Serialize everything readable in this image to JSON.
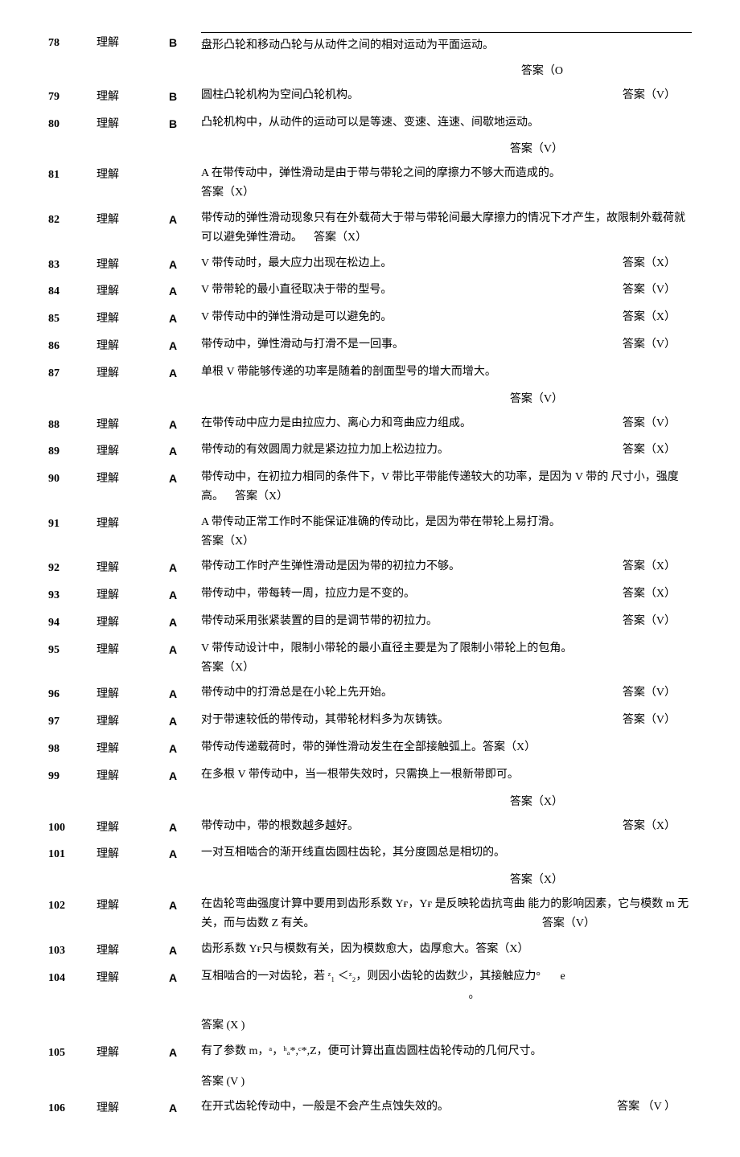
{
  "rows": [
    {
      "n": "78",
      "lvl": "理解",
      "g": "B",
      "q": "盘形凸轮和移动凸轮与从动件之间的相对运动为平面运动。",
      "a": "答案（O",
      "layout": "below-right",
      "topline": true
    },
    {
      "n": "79",
      "lvl": "理解",
      "g": "B",
      "q": "圆柱凸轮机构为空间凸轮机构。",
      "a": "答案（V）",
      "layout": "inline-right"
    },
    {
      "n": "80",
      "lvl": "理解",
      "g": "B",
      "q": "凸轮机构中，从动件的运动可以是等速、变速、连速、间歇地运动。",
      "a": "答案（V）",
      "layout": "below-right"
    },
    {
      "n": "81",
      "lvl": "理解",
      "g": "A",
      "q": "在带传动中，弹性滑动是由于带与带轮之间的摩擦力不够大而造成的。",
      "a": "答案（X）",
      "layout": "next-line",
      "merged": true
    },
    {
      "n": "82",
      "lvl": "理解",
      "g": "A",
      "q": "带传动的弹性滑动现象只有在外载荷大于带与带轮间最大摩擦力的情况下才产生，故限制外载荷就可以避免弹性滑动。",
      "a": "答案（X）",
      "layout": "inline-after"
    },
    {
      "n": "83",
      "lvl": "理解",
      "g": "A",
      "q": "V 带传动时，最大应力出现在松边上。",
      "a": "答案（X）",
      "layout": "inline-right"
    },
    {
      "n": "84",
      "lvl": "理解",
      "g": "A",
      "q": "V 带带轮的最小直径取决于带的型号。",
      "a": "答案（V）",
      "layout": "inline-right"
    },
    {
      "n": "85",
      "lvl": "理解",
      "g": "A",
      "q": "V 带传动中的弹性滑动是可以避免的。",
      "a": "答案（X）",
      "layout": "inline-right"
    },
    {
      "n": "86",
      "lvl": "理解",
      "g": "A",
      "q": "带传动中，弹性滑动与打滑不是一回事。",
      "a": "答案（V）",
      "layout": "inline-right"
    },
    {
      "n": "87",
      "lvl": "理解",
      "g": "A",
      "q": "单根 V 带能够传递的功率是随着的剖面型号的增大而增大。",
      "a": "答案（V）",
      "layout": "below-right"
    },
    {
      "n": "88",
      "lvl": "理解",
      "g": "A",
      "q": "在带传动中应力是由拉应力、离心力和弯曲应力组成。",
      "a": "答案（V）",
      "layout": "inline-right"
    },
    {
      "n": "89",
      "lvl": "理解",
      "g": "A",
      "q": "带传动的有效圆周力就是紧边拉力加上松边拉力。",
      "a": "答案（X）",
      "layout": "inline-right"
    },
    {
      "n": "90",
      "lvl": "理解",
      "g": "A",
      "q": "带传动中，在初拉力相同的条件下，V 带比平带能传递较大的功率，是因为 V 带的 尺寸小，强度高。",
      "a": "答案（X）",
      "layout": "inline-after"
    },
    {
      "n": "91",
      "lvl": "理解",
      "g": "A",
      "q": "带传动正常工作时不能保证准确的传动比，是因为带在带轮上易打滑。",
      "a": "答案（X）",
      "layout": "next-line",
      "merged": true
    },
    {
      "n": "92",
      "lvl": "理解",
      "g": "A",
      "q": "带传动工作时产生弹性滑动是因为带的初拉力不够。",
      "a": "答案（X）",
      "layout": "inline-right"
    },
    {
      "n": "93",
      "lvl": "理解",
      "g": "A",
      "q": "带传动中，带每转一周，拉应力是不变的。",
      "a": "答案（X）",
      "layout": "inline-right"
    },
    {
      "n": "94",
      "lvl": "理解",
      "g": "A",
      "q": "带传动采用张紧装置的目的是调节带的初拉力。",
      "a": "答案（V）",
      "layout": "inline-right"
    },
    {
      "n": "95",
      "lvl": "理解",
      "g": "A",
      "q": "V 带传动设计中，限制小带轮的最小直径主要是为了限制小带轮上的包角。",
      "a": "答案（X）",
      "layout": "next-line"
    },
    {
      "n": "96",
      "lvl": "理解",
      "g": "A",
      "q": "带传动中的打滑总是在小轮上先开始。",
      "a": "答案（V）",
      "layout": "inline-right"
    },
    {
      "n": "97",
      "lvl": "理解",
      "g": "A",
      "q": "对于带速较低的带传动，其带轮材料多为灰铸铁。",
      "a": "答案（V）",
      "layout": "inline-right"
    },
    {
      "n": "98",
      "lvl": "理解",
      "g": "A",
      "q": "带传动传递载荷时，带的弹性滑动发生在全部接触弧上。",
      "a": "答案（X）",
      "layout": "inline-tight"
    },
    {
      "n": "99",
      "lvl": "理解",
      "g": "A",
      "q": "在多根 V 带传动中，当一根带失效时，只需换上一根新带即可。",
      "a": "答案（X）",
      "layout": "below-right"
    },
    {
      "n": "100",
      "lvl": "理解",
      "g": "A",
      "q": "带传动中，带的根数越多越好。",
      "a": "答案（X）",
      "layout": "inline-right"
    },
    {
      "n": "101",
      "lvl": "理解",
      "g": "A",
      "q": "一对互相啮合的渐开线直齿圆柱齿轮，其分度圆总是相切的。",
      "a": "答案（X）",
      "layout": "below-right"
    },
    {
      "n": "102",
      "lvl": "理解",
      "g": "A",
      "q": "在齿轮弯曲强度计算中要用到齿形系数 Yғ，Yғ 是反映轮齿抗弯曲 能力的影响因素，它与模数 m 无关，而与齿数 Z 有关。",
      "a": "答案（V）",
      "layout": "inline-right-end"
    },
    {
      "n": "103",
      "lvl": "理解",
      "g": "A",
      "q": "齿形系数 Yғ只与模数有关，因为模数愈大，齿厚愈大。",
      "a": "答案（X）",
      "layout": "inline-tight"
    },
    {
      "n": "104",
      "lvl": "理解",
      "g": "A",
      "q": "互相啮合的一对齿轮，若 ᶻ₁ ＜ᶻ₂，则因小齿轮的齿数少，其接触应力°       e\n                                                                                               。",
      "a": "答案 (X )",
      "layout": "next-line-gap"
    },
    {
      "n": "105",
      "lvl": "理解",
      "g": "A",
      "q": "有了参数 m，ᵃ，ʰₐ*,ᶜ*,Z，便可计算出直齿圆柱齿轮传动的几何尺寸。",
      "a": "答案 (V )",
      "layout": "next-line-gap"
    },
    {
      "n": "106",
      "lvl": "理解",
      "g": "A",
      "q": "在开式齿轮传动中，一般是不会产生点蚀失效的。",
      "a": "答案 （V ）",
      "layout": "inline-right"
    }
  ]
}
